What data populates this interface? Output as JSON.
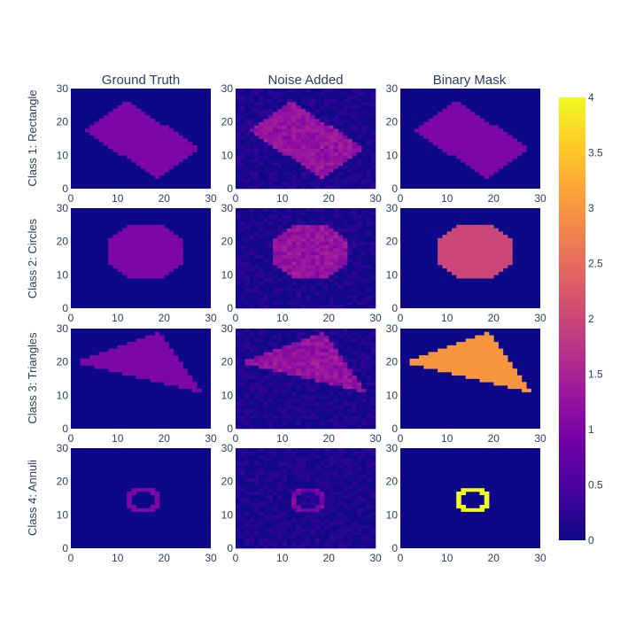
{
  "chart_data": {
    "type": "heatmap",
    "grid_size": 30,
    "column_titles": [
      "Ground Truth",
      "Noise Added",
      "Binary Mask"
    ],
    "row_titles": [
      "Class 1: Rectangle",
      "Class 2: Circles",
      "Class 3: Triangles",
      "Class 4: Annuli"
    ],
    "x_ticks": [
      "0",
      "10",
      "20",
      "30"
    ],
    "y_ticks": [
      "0",
      "10",
      "20",
      "30"
    ],
    "xlim": [
      0,
      30
    ],
    "ylim": [
      0,
      30
    ],
    "colorbar": {
      "min": 0,
      "max": 4,
      "tick_values": [
        0,
        0.5,
        1,
        1.5,
        2,
        2.5,
        3,
        3.5,
        4
      ],
      "tick_labels": [
        "0",
        "0.5",
        "1",
        "1.5",
        "2",
        "2.5",
        "3",
        "3.5",
        "4"
      ]
    },
    "colorscale": [
      "#0d0887",
      "#46039f",
      "#7201a8",
      "#9c179e",
      "#bd3786",
      "#d8576b",
      "#ed7953",
      "#fb9f3a",
      "#fdca26",
      "#f0f921"
    ],
    "rows": [
      {
        "shape": "rectangle",
        "shape_value_ground_truth": 1,
        "shape_value_noise_added": 1.25,
        "mask_value": 1,
        "corners": [
          [
            3,
            17
          ],
          [
            12,
            26
          ],
          [
            28,
            12
          ],
          [
            19,
            3
          ]
        ]
      },
      {
        "shape": "circle",
        "shape_value_ground_truth": 1,
        "shape_value_noise_added": 1.25,
        "mask_value": 2,
        "center": [
          16,
          17
        ],
        "radius": 8.5
      },
      {
        "shape": "triangle",
        "shape_value_ground_truth": 1,
        "shape_value_noise_added": 1.25,
        "mask_value": 3,
        "corners": [
          [
            1,
            20
          ],
          [
            19,
            29
          ],
          [
            28,
            11
          ]
        ]
      },
      {
        "shape": "annulus",
        "shape_value_ground_truth": 1,
        "shape_value_noise_added": 1,
        "mask_value": 4,
        "center": [
          15.5,
          14.5
        ],
        "inner_radius": 2.6,
        "outer_radius": 3.7
      }
    ],
    "noise_level": 0.5
  }
}
